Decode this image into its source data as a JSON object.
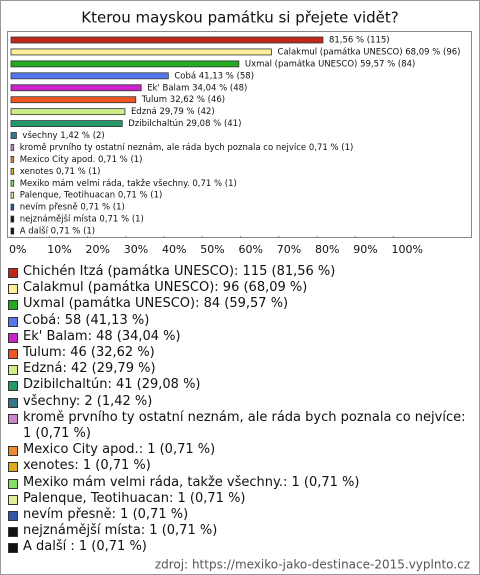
{
  "chart_data": {
    "type": "bar",
    "orientation": "horizontal",
    "title": "Kterou mayskou památku si přejete vidět?",
    "values": [
      81.56,
      68.09,
      59.57,
      41.13,
      34.04,
      32.62,
      29.79,
      29.08,
      1.42,
      0.71,
      0.71,
      0.71,
      0.71,
      0.71,
      0.71,
      0.71,
      0.71
    ],
    "value_labels": [
      "81,56 % (115)",
      "Calakmul (památka UNESCO) 68,09 % (96)",
      "Uxmal (památka UNESCO) 59,57 % (84)",
      "Cobá 41,13 % (58)",
      "Ek' Balam 34,04 % (48)",
      "Tulum 32,62 % (46)",
      "Edzná 29,79 % (42)",
      "Dzibilchaltún 29,08 % (41)",
      "všechny 1,42 % (2)",
      "kromě prvního ty ostatní neznám, ale ráda bych poznala co nejvíce 0,71 % (1)",
      "Mexico City apod. 0,71 % (1)",
      "xenotes 0,71 % (1)",
      "Mexiko mám velmi ráda, takže všechny. 0,71 % (1)",
      "Palenque, Teotihuacan 0,71 % (1)",
      "nevím přesně 0,71 % (1)",
      "nejznámější místa 0,71 % (1)",
      "A další 0,71 % (1)"
    ],
    "legend_labels": [
      "Chichén Itzá (památka UNESCO): 115 (81,56 %)",
      "Calakmul (památka UNESCO): 96 (68,09 %)",
      "Uxmal (památka UNESCO): 84 (59,57 %)",
      "Cobá: 58 (41,13 %)",
      "Ek' Balam: 48 (34,04 %)",
      "Tulum: 46 (32,62 %)",
      "Edzná: 42 (29,79 %)",
      "Dzibilchaltún: 41 (29,08 %)",
      "všechny: 2 (1,42 %)",
      "kromě prvního ty ostatní neznám, ale ráda bych poznala co nejvíce: 1 (0,71 %)",
      "Mexico City apod.: 1 (0,71 %)",
      "xenotes: 1 (0,71 %)",
      "Mexiko mám velmi ráda, takže všechny.: 1 (0,71 %)",
      "Palenque, Teotihuacan: 1 (0,71 %)",
      "nevím přesně: 1 (0,71 %)",
      "nejznámější místa: 1 (0,71 %)",
      "A další : 1 (0,71 %)"
    ],
    "colors": [
      "#c0281c",
      "#ffee99",
      "#22aa22",
      "#5577ee",
      "#cc22cc",
      "#ee5522",
      "#ccee88",
      "#229966",
      "#337788",
      "#cc88cc",
      "#ee8833",
      "#ddaa22",
      "#88dd66",
      "#ddee99",
      "#3355aa",
      "#111111",
      "#111111"
    ],
    "xlim": [
      0,
      120
    ],
    "xticks": [
      {
        "value": 0,
        "label": "0%"
      },
      {
        "value": 10,
        "label": "10%"
      },
      {
        "value": 20,
        "label": "20%"
      },
      {
        "value": 30,
        "label": "30%"
      },
      {
        "value": 40,
        "label": "40%"
      },
      {
        "value": 50,
        "label": "50%"
      },
      {
        "value": 60,
        "label": "60%"
      },
      {
        "value": 70,
        "label": "70%"
      },
      {
        "value": 80,
        "label": "80%"
      },
      {
        "value": 90,
        "label": "90%"
      },
      {
        "value": 100,
        "label": "100%"
      }
    ],
    "source": "zdroj: https://mexiko-jako-destinace-2015.vyplnto.cz"
  }
}
